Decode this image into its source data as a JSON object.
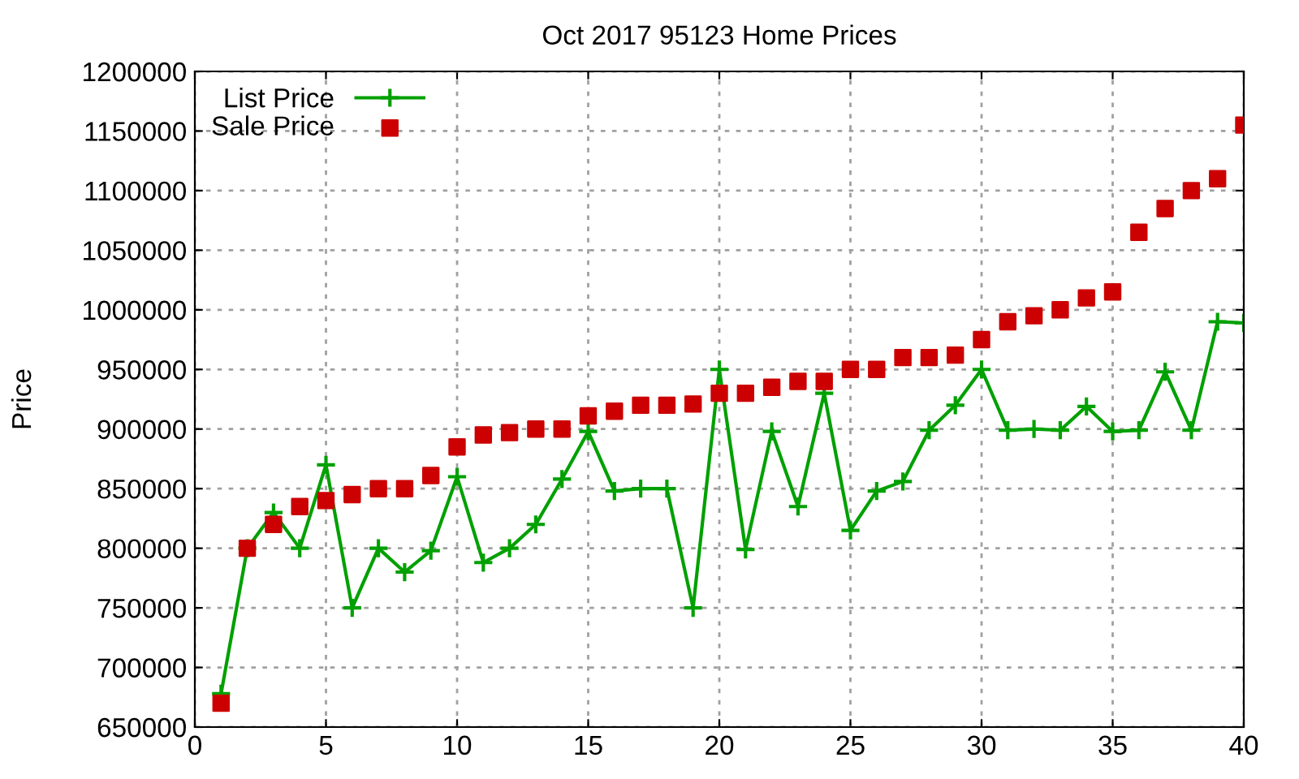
{
  "chart_data": {
    "type": "line",
    "title": "Oct 2017 95123 Home Prices",
    "ylabel": "Price",
    "x": [
      1,
      2,
      3,
      4,
      5,
      6,
      7,
      8,
      9,
      10,
      11,
      12,
      13,
      14,
      15,
      16,
      17,
      18,
      19,
      20,
      21,
      22,
      23,
      24,
      25,
      26,
      27,
      28,
      29,
      30,
      31,
      32,
      33,
      34,
      35,
      36,
      37,
      38,
      39,
      40
    ],
    "series": [
      {
        "name": "List Price",
        "color": "#00a000",
        "marker": "cross",
        "values": [
          678000,
          800000,
          830000,
          800000,
          870000,
          750000,
          800000,
          780000,
          798000,
          860000,
          788000,
          800000,
          820000,
          858000,
          898000,
          848000,
          850000,
          850000,
          750000,
          950000,
          799000,
          898000,
          835000,
          930000,
          815000,
          848000,
          856000,
          899000,
          920000,
          950000,
          899000,
          900000,
          899000,
          919000,
          898000,
          899000,
          948000,
          899000,
          990000,
          989000
        ]
      },
      {
        "name": "Sale Price",
        "type": "scatter",
        "color": "#cc0000",
        "marker": "square",
        "values": [
          670000,
          800000,
          820000,
          835000,
          840000,
          845000,
          850000,
          850000,
          861000,
          885000,
          895000,
          897000,
          900000,
          900000,
          911000,
          915000,
          920000,
          920000,
          921000,
          930000,
          930000,
          935000,
          940000,
          940000,
          950000,
          950000,
          960000,
          960000,
          962000,
          975000,
          990000,
          995000,
          1000000,
          1010000,
          1015000,
          1065000,
          1085000,
          1100000,
          1110000,
          1155000
        ]
      }
    ],
    "xlim": [
      0,
      40
    ],
    "xticks": [
      0,
      5,
      10,
      15,
      20,
      25,
      30,
      35,
      40
    ],
    "ylim": [
      650000,
      1200000
    ],
    "yticks": [
      650000,
      700000,
      750000,
      800000,
      850000,
      900000,
      950000,
      1000000,
      1050000,
      1100000,
      1150000,
      1200000
    ],
    "grid": true,
    "legend": "top left"
  }
}
